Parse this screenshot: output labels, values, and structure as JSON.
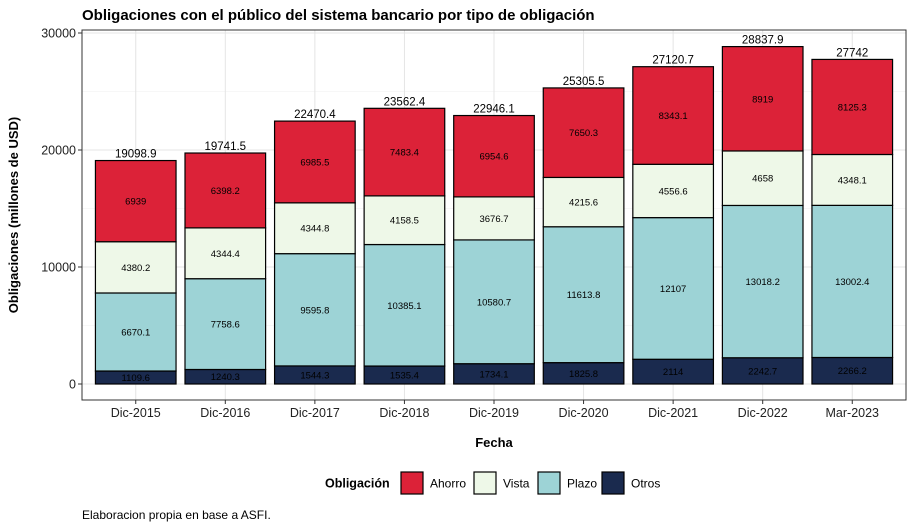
{
  "chart_data": {
    "type": "bar",
    "stacked": true,
    "title": "Obligaciones con el público del sistema bancario por tipo de obligación",
    "xlabel": "Fecha",
    "ylabel": "Obligaciones (millones de USD)",
    "ylim": [
      0,
      30000
    ],
    "yticks": [
      0,
      10000,
      20000,
      30000
    ],
    "grid": true,
    "legend_position": "bottom",
    "legend_title": "Obligación",
    "caption": "Elaboracion propia en base a ASFI.",
    "categories": [
      "Dic-2015",
      "Dic-2016",
      "Dic-2017",
      "Dic-2018",
      "Dic-2019",
      "Dic-2020",
      "Dic-2021",
      "Dic-2022",
      "Mar-2023"
    ],
    "totals": [
      19098.9,
      19741.5,
      22470.4,
      23562.4,
      22946.1,
      25305.5,
      27120.7,
      28837.9,
      27742
    ],
    "series": [
      {
        "name": "Otros",
        "color": "#1a2a4e",
        "values": [
          1109.6,
          1240.3,
          1544.3,
          1535.4,
          1734.1,
          1825.8,
          2114,
          2242.7,
          2266.2
        ]
      },
      {
        "name": "Plazo",
        "color": "#9dd3d6",
        "values": [
          6670.1,
          7758.6,
          9595.8,
          10385.1,
          10580.7,
          11613.8,
          12107,
          13018.2,
          13002.4
        ]
      },
      {
        "name": "Vista",
        "color": "#eef8e8",
        "values": [
          4380.2,
          4344.4,
          4344.8,
          4158.5,
          3676.7,
          4215.6,
          4556.6,
          4658,
          4348.1
        ]
      },
      {
        "name": "Ahorro",
        "color": "#dc2238",
        "values": [
          6939,
          6398.2,
          6985.5,
          7483.4,
          6954.6,
          7650.3,
          8343.1,
          8919,
          8125.3
        ]
      }
    ],
    "legend_order": [
      "Ahorro",
      "Vista",
      "Plazo",
      "Otros"
    ]
  }
}
